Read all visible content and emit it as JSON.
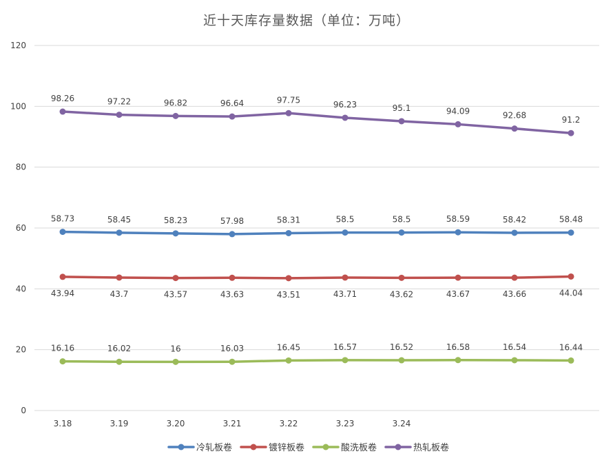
{
  "chart_data": {
    "type": "line",
    "title": "近十天库存量数据（单位：万吨）",
    "xlabel": "",
    "ylabel": "",
    "categories": [
      "3.18",
      "3.19",
      "3.20",
      "3.21",
      "3.22",
      "3.23",
      "3.24",
      "",
      "",
      ""
    ],
    "ylim": [
      0,
      120
    ],
    "yticks": [
      0,
      20,
      40,
      60,
      80,
      100,
      120
    ],
    "grid": true,
    "legend_position": "bottom",
    "series": [
      {
        "name": "冷轧板卷",
        "color": "#4f81bd",
        "label_position": "above",
        "values": [
          58.73,
          58.45,
          58.23,
          57.98,
          58.31,
          58.5,
          58.5,
          58.59,
          58.42,
          58.48
        ]
      },
      {
        "name": "镀锌板卷",
        "color": "#c0504d",
        "label_position": "below",
        "values": [
          43.94,
          43.7,
          43.57,
          43.63,
          43.51,
          43.71,
          43.62,
          43.67,
          43.66,
          44.04
        ]
      },
      {
        "name": "酸洗板卷",
        "color": "#9bbb59",
        "label_position": "above",
        "values": [
          16.16,
          16.02,
          16,
          16.03,
          16.45,
          16.57,
          16.52,
          16.58,
          16.54,
          16.44
        ]
      },
      {
        "name": "热轧板卷",
        "color": "#8064a2",
        "label_position": "above",
        "values": [
          98.26,
          97.22,
          96.82,
          96.64,
          97.75,
          96.23,
          95.1,
          94.09,
          92.68,
          91.2
        ]
      }
    ]
  }
}
